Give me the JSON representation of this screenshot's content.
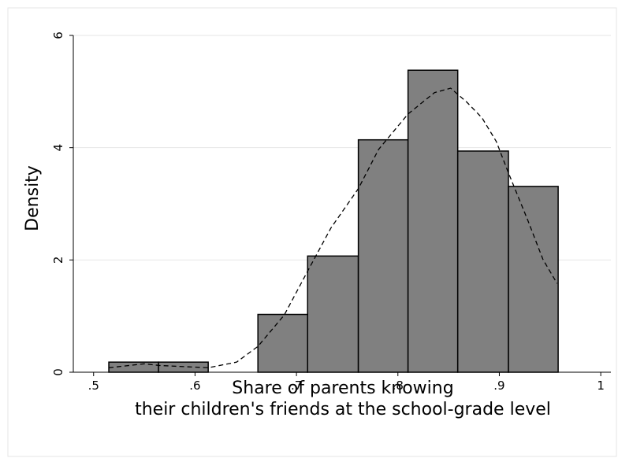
{
  "chart_data": {
    "type": "histogram",
    "xlabel": [
      "Share of parents knowing",
      "their children's friends at the school-grade level"
    ],
    "ylabel": "Density",
    "bins": [
      0.515,
      0.564,
      0.613,
      0.662,
      0.711,
      0.761,
      0.81,
      0.859,
      0.909,
      0.958
    ],
    "values": [
      0.18,
      0.18,
      0,
      1.03,
      2.07,
      4.14,
      5.38,
      3.94,
      3.31
    ],
    "color": "#808080",
    "density": {
      "x": [
        0.515,
        0.55,
        0.565,
        0.613,
        0.641,
        0.662,
        0.688,
        0.711,
        0.734,
        0.761,
        0.781,
        0.81,
        0.836,
        0.852,
        0.868,
        0.883,
        0.897,
        0.909,
        0.928,
        0.943,
        0.957
      ],
      "y": [
        0.08,
        0.15,
        0.12,
        0.08,
        0.18,
        0.46,
        1.02,
        1.8,
        2.57,
        3.27,
        3.97,
        4.6,
        4.98,
        5.06,
        4.81,
        4.53,
        4.11,
        3.55,
        2.71,
        2.01,
        1.58
      ],
      "color": "#000000"
    },
    "xlim": [
      0.48,
      1.01
    ],
    "xticks": [
      {
        "value": 0.5,
        "label": ".5"
      },
      {
        "value": 0.6,
        "label": ".6"
      },
      {
        "value": 0.7,
        "label": ".7"
      },
      {
        "value": 0.8,
        "label": ".8"
      },
      {
        "value": 0.9,
        "label": ".9"
      },
      1
    ],
    "ylim": [
      0,
      6
    ],
    "yticks": [
      0,
      2,
      4,
      6
    ],
    "grid": true
  }
}
